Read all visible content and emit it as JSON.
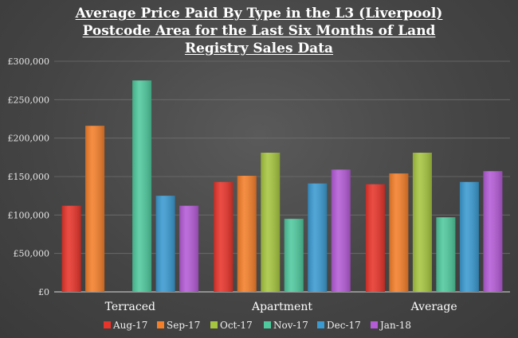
{
  "chart_data": {
    "type": "bar",
    "title": "Average Price Paid By Type in the L3 (Liverpool)\nPostcode Area for the Last Six Months of Land\nRegistry Sales Data",
    "xlabel": "",
    "ylabel": "",
    "categories": [
      "Terraced",
      "Apartment",
      "Average"
    ],
    "ylim": [
      0,
      300000
    ],
    "yticks": [
      0,
      50000,
      100000,
      150000,
      200000,
      250000,
      300000
    ],
    "ytick_labels": [
      "£0",
      "£50,000",
      "£100,000",
      "£150,000",
      "£200,000",
      "£250,000",
      "£300,000"
    ],
    "grid": true,
    "legend_position": "bottom",
    "series": [
      {
        "name": "Aug-17",
        "color": "#e8342a",
        "values": [
          112000,
          143000,
          140000
        ]
      },
      {
        "name": "Sep-17",
        "color": "#f47f2a",
        "values": [
          216000,
          151000,
          154000
        ]
      },
      {
        "name": "Oct-17",
        "color": "#a7c640",
        "values": [
          null,
          181000,
          181000
        ]
      },
      {
        "name": "Nov-17",
        "color": "#4fc99e",
        "values": [
          275000,
          95000,
          97000
        ]
      },
      {
        "name": "Dec-17",
        "color": "#3a9ad1",
        "values": [
          125000,
          141000,
          143000
        ]
      },
      {
        "name": "Jan-18",
        "color": "#b45bd6",
        "values": [
          112000,
          159000,
          157000
        ]
      }
    ]
  }
}
